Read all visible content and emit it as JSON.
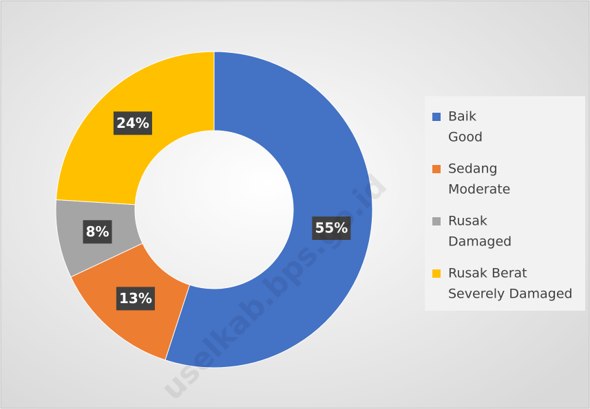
{
  "chart_data": {
    "type": "donut",
    "categories": [
      [
        "Baik",
        "Good"
      ],
      [
        "Sedang",
        "Moderate"
      ],
      [
        "Rusak",
        "Damaged"
      ],
      [
        "Rusak Berat",
        "Severely Damaged"
      ]
    ],
    "values": [
      55,
      13,
      8,
      24
    ],
    "value_labels": [
      "55%",
      "13%",
      "8%",
      "24%"
    ],
    "colors": [
      "#4472c4",
      "#ed7d31",
      "#a5a5a5",
      "#ffc000"
    ],
    "legend": "right",
    "watermark": "uselkab.bps.go.id"
  }
}
